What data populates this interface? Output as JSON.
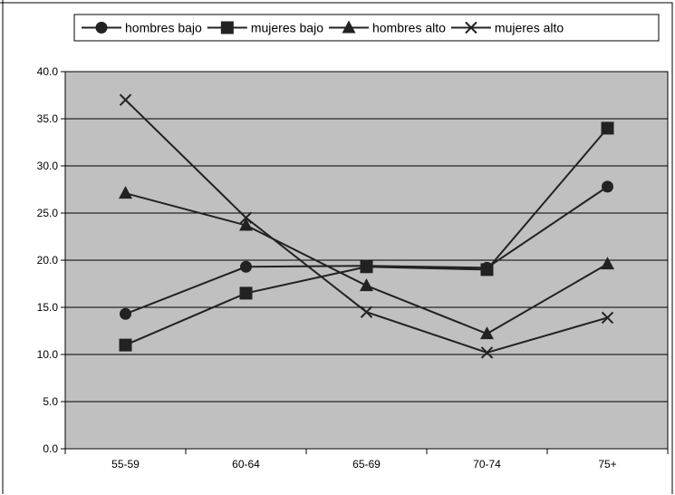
{
  "chart_data": {
    "type": "line",
    "title": "",
    "xlabel": "",
    "ylabel": "",
    "categories": [
      "55-59",
      "60-64",
      "65-69",
      "70-74",
      "75+"
    ],
    "ylim": [
      0,
      40
    ],
    "yticks": [
      "0.0",
      "5.0",
      "10.0",
      "15.0",
      "20.0",
      "25.0",
      "30.0",
      "35.0",
      "40.0"
    ],
    "grid": true,
    "legend_position": "top",
    "plot_background": "#c0c0c0",
    "line_color": "#222222",
    "series": [
      {
        "name": "hombres bajo",
        "marker": "circle",
        "values": [
          14.3,
          19.3,
          19.4,
          19.2,
          27.8
        ]
      },
      {
        "name": "mujeres bajo",
        "marker": "square",
        "values": [
          11.0,
          16.5,
          19.3,
          19.0,
          34.0
        ]
      },
      {
        "name": "hombres alto",
        "marker": "triangle",
        "values": [
          27.1,
          23.7,
          17.3,
          12.2,
          19.6
        ]
      },
      {
        "name": "mujeres alto",
        "marker": "x",
        "values": [
          37.0,
          24.5,
          14.5,
          10.2,
          13.9
        ]
      }
    ]
  }
}
